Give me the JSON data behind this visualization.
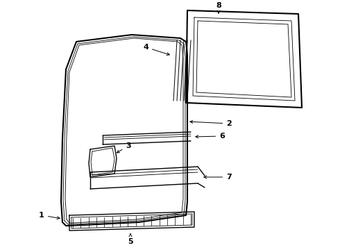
{
  "background_color": "#ffffff",
  "line_color": "#000000",
  "lw_thick": 1.5,
  "lw_main": 1.0,
  "lw_thin": 0.6,
  "label_fontsize": 8
}
